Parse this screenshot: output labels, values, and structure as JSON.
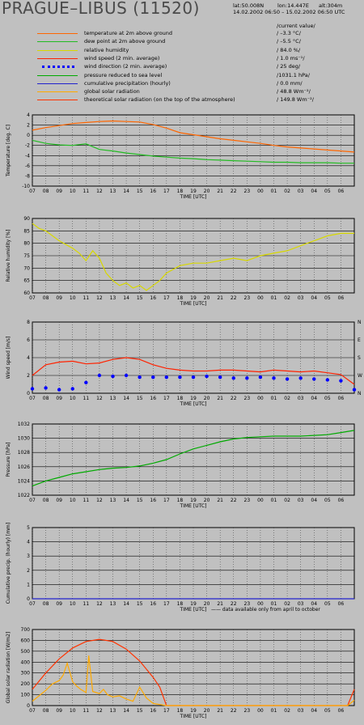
{
  "header": {
    "station_title": "PRAGUE–LIBUS (11520)",
    "lat": "lat:50.008N",
    "lon": "lon:14.447E",
    "alt": "alt:304m",
    "period": "14.02.2002 06:50 – 15.02.2002 06:50 UTC",
    "current_value_label": "/current value/"
  },
  "legend": [
    {
      "label": "temperature at 2m above ground",
      "value": "/  –3.3 °C/",
      "color": "#ff6600",
      "style": "line"
    },
    {
      "label": "dew point at 2m above ground",
      "value": "/  –5.5 °C/",
      "color": "#22bb22",
      "style": "line"
    },
    {
      "label": "relative humidity",
      "value": "/  84.0 %/",
      "color": "#d8d800",
      "style": "line"
    },
    {
      "label": "wind speed (2 min. average)",
      "value": "/  1.0 ms⁻¹/",
      "color": "#ff2200",
      "style": "line"
    },
    {
      "label": "wind direction (2 min. average)",
      "value": "/  25 deg/",
      "color": "#0000ff",
      "style": "dots"
    },
    {
      "label": "pressure reduced to sea level",
      "value": "/1031.1 hPa/",
      "color": "#00aa00",
      "style": "line"
    },
    {
      "label": "cumulative precipitation (hourly)",
      "value": "/  0.0 mm/",
      "color": "#2222cc",
      "style": "line"
    },
    {
      "label": "global solar radiation",
      "value": "/  48.8 Wm⁻²/",
      "color": "#ffaa00",
      "style": "line"
    },
    {
      "label": "theoretical solar radiation (on the top of the atmosphere)",
      "value": "/ 149.8 Wm⁻²/",
      "color": "#ff3300",
      "style": "line"
    }
  ],
  "time_ticks": [
    "07",
    "08",
    "09",
    "10",
    "11",
    "12",
    "13",
    "14",
    "15",
    "16",
    "17",
    "18",
    "19",
    "20",
    "21",
    "22",
    "23",
    "00",
    "01",
    "02",
    "03",
    "04",
    "05",
    "06"
  ],
  "xlabel": "TIME [UTC]",
  "precip_note": "—— data available only from april to october",
  "chart_data": [
    {
      "type": "line",
      "id": "temperature",
      "ylabel": "Temperature [deg. C]",
      "ylim": [
        -10,
        4
      ],
      "yticks": [
        -10,
        -8,
        -6,
        -4,
        -2,
        0,
        2,
        4
      ],
      "grid": true,
      "series": [
        {
          "name": "temperature at 2m above ground",
          "color": "#ff6600",
          "x": [
            0,
            1,
            2,
            3,
            4,
            5,
            6,
            7,
            8,
            9,
            10,
            11,
            12,
            13,
            14,
            15,
            16,
            17,
            18,
            19,
            20,
            21,
            22,
            23,
            24
          ],
          "values": [
            1,
            1.5,
            1.9,
            2.3,
            2.5,
            2.7,
            2.8,
            2.7,
            2.6,
            2.1,
            1.4,
            0.5,
            0.1,
            -0.3,
            -0.7,
            -1,
            -1.3,
            -1.6,
            -2,
            -2.3,
            -2.5,
            -2.7,
            -2.9,
            -3.1,
            -3.3
          ]
        },
        {
          "name": "dew point at 2m above ground",
          "color": "#22bb22",
          "x": [
            0,
            1,
            2,
            3,
            4,
            5,
            6,
            7,
            8,
            9,
            10,
            11,
            12,
            13,
            14,
            15,
            16,
            17,
            18,
            19,
            20,
            21,
            22,
            23,
            24
          ],
          "values": [
            -1,
            -1.6,
            -1.9,
            -2,
            -1.7,
            -2.8,
            -3.1,
            -3.5,
            -3.8,
            -4.1,
            -4.3,
            -4.5,
            -4.6,
            -4.8,
            -4.9,
            -5,
            -5.1,
            -5.2,
            -5.3,
            -5.3,
            -5.4,
            -5.4,
            -5.4,
            -5.5,
            -5.5
          ]
        }
      ]
    },
    {
      "type": "line",
      "id": "humidity",
      "ylabel": "Relative humidity [%]",
      "ylim": [
        60,
        90
      ],
      "yticks": [
        60,
        65,
        70,
        75,
        80,
        85,
        90
      ],
      "grid": true,
      "series": [
        {
          "name": "relative humidity",
          "color": "#d8d800",
          "x": [
            0,
            0.5,
            1,
            2,
            3,
            3.5,
            4,
            4.5,
            5,
            5.5,
            6,
            6.5,
            7,
            7.5,
            8,
            8.5,
            9,
            9.5,
            10,
            11,
            12,
            13,
            14,
            15,
            16,
            17,
            18,
            19,
            20,
            21,
            22,
            23,
            24
          ],
          "values": [
            88,
            86,
            85,
            81,
            78,
            76,
            73,
            77,
            74,
            68,
            65,
            63,
            64,
            62,
            63,
            61,
            63,
            65,
            68,
            71,
            72,
            72,
            73,
            74,
            73,
            75,
            76,
            77,
            79,
            81,
            83,
            84,
            84
          ]
        }
      ]
    },
    {
      "type": "line",
      "id": "wind",
      "ylabel": "Wind speed [m/s]",
      "right_ticks": [
        "N",
        "W",
        "S",
        "E",
        "N"
      ],
      "ylim": [
        0,
        8
      ],
      "yticks": [
        0,
        2,
        4,
        6,
        8
      ],
      "grid": true,
      "series": [
        {
          "name": "wind speed (2 min. average)",
          "color": "#ff2200",
          "x": [
            0,
            1,
            2,
            3,
            4,
            5,
            6,
            7,
            8,
            9,
            10,
            11,
            12,
            13,
            14,
            15,
            16,
            17,
            18,
            19,
            20,
            21,
            22,
            23,
            24
          ],
          "values": [
            2,
            3.2,
            3.5,
            3.6,
            3.3,
            3.4,
            3.8,
            4.0,
            3.8,
            3.2,
            2.8,
            2.6,
            2.5,
            2.5,
            2.6,
            2.6,
            2.5,
            2.4,
            2.6,
            2.5,
            2.4,
            2.5,
            2.3,
            2.1,
            1.0
          ]
        },
        {
          "name": "wind direction (2 min. average)",
          "color": "#0000ff",
          "x": [
            0,
            1,
            2,
            3,
            4,
            5,
            6,
            7,
            8,
            9,
            10,
            11,
            12,
            13,
            14,
            15,
            16,
            17,
            18,
            19,
            20,
            21,
            22,
            23,
            24
          ],
          "values": [
            0.5,
            0.6,
            0.4,
            0.5,
            1.2,
            2.0,
            1.9,
            2.0,
            1.8,
            1.8,
            1.8,
            1.8,
            1.8,
            1.9,
            1.8,
            1.7,
            1.7,
            1.8,
            1.7,
            1.6,
            1.7,
            1.6,
            1.5,
            1.4,
            0.4
          ]
        }
      ]
    },
    {
      "type": "line",
      "id": "pressure",
      "ylabel": "Pressure [hPa]",
      "ylim": [
        1022,
        1032
      ],
      "yticks": [
        1022,
        1024,
        1026,
        1028,
        1030,
        1032
      ],
      "grid": true,
      "series": [
        {
          "name": "pressure reduced to sea level",
          "color": "#00aa00",
          "x": [
            0,
            1,
            2,
            3,
            4,
            5,
            6,
            7,
            8,
            9,
            10,
            11,
            12,
            13,
            14,
            15,
            16,
            17,
            18,
            19,
            20,
            21,
            22,
            23,
            24
          ],
          "values": [
            1023.3,
            1024,
            1024.5,
            1025,
            1025.3,
            1025.6,
            1025.8,
            1025.9,
            1026.1,
            1026.5,
            1027,
            1027.8,
            1028.5,
            1029,
            1029.5,
            1029.9,
            1030.1,
            1030.2,
            1030.3,
            1030.3,
            1030.3,
            1030.4,
            1030.5,
            1030.8,
            1031.1
          ]
        }
      ]
    },
    {
      "type": "line",
      "id": "precipitation",
      "ylabel": "Cumulative precip. (hourly) [mm]",
      "ylim": [
        0,
        5
      ],
      "yticks": [
        0,
        1,
        2,
        3,
        4,
        5
      ],
      "grid": true,
      "series": [
        {
          "name": "cumulative precipitation (hourly)",
          "color": "#2222cc",
          "x": [
            0,
            24
          ],
          "values": [
            0,
            0
          ]
        }
      ]
    },
    {
      "type": "line",
      "id": "radiation",
      "ylabel": "Global solar radiation [W/m2]",
      "ylim": [
        0,
        700
      ],
      "yticks": [
        0,
        100,
        200,
        300,
        400,
        500,
        600,
        700
      ],
      "grid": true,
      "series": [
        {
          "name": "theoretical solar radiation (on the top of the atmosphere)",
          "color": "#ff3300",
          "x": [
            0,
            1,
            2,
            3,
            4,
            5,
            6,
            7,
            8,
            9,
            9.5,
            10,
            23.5,
            24
          ],
          "values": [
            150,
            300,
            430,
            530,
            590,
            610,
            590,
            520,
            410,
            260,
            170,
            0,
            0,
            150
          ]
        },
        {
          "name": "global solar radiation",
          "color": "#ffaa00",
          "x": [
            0,
            0.5,
            1,
            1.5,
            2,
            2.3,
            2.6,
            3,
            3.3,
            3.6,
            4,
            4.2,
            4.5,
            5,
            5.3,
            5.6,
            6,
            6.5,
            7,
            7.5,
            8,
            8.5,
            9,
            9.5,
            10,
            23.5,
            24
          ],
          "values": [
            40,
            90,
            140,
            200,
            230,
            280,
            390,
            220,
            180,
            150,
            120,
            460,
            130,
            110,
            150,
            100,
            80,
            90,
            60,
            40,
            170,
            70,
            20,
            10,
            0,
            0,
            49
          ]
        }
      ]
    }
  ]
}
